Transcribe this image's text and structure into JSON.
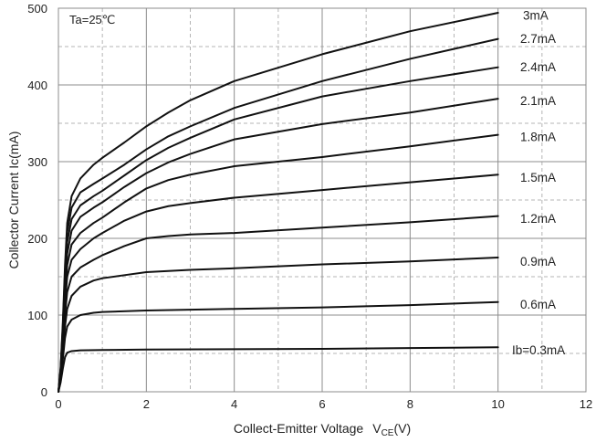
{
  "chart_data": {
    "type": "line",
    "xlabel": "Collect-Emitter Voltage",
    "xlabel_symbol": "V",
    "xlabel_subscript": "CE",
    "xlabel_unit": "(V)",
    "ylabel": "Collector  Current  Ic(mA)",
    "annotation": "Ta=25℃",
    "xlim": [
      0,
      12
    ],
    "ylim": [
      0,
      500
    ],
    "x_ticks": [
      0,
      2,
      4,
      6,
      8,
      10,
      12
    ],
    "y_ticks": [
      0,
      100,
      200,
      300,
      400,
      500
    ],
    "grid": true,
    "minor_grid": "dashed",
    "line_color": "#111111",
    "series": [
      {
        "name": "Ib=0.3mA",
        "x": [
          0,
          0.05,
          0.1,
          0.15,
          0.2,
          0.3,
          0.5,
          1,
          2,
          4,
          6,
          8,
          10
        ],
        "y": [
          0,
          12,
          30,
          45,
          51,
          53,
          54,
          54.5,
          55,
          55.5,
          56,
          57,
          58
        ]
      },
      {
        "name": "0.6mA",
        "x": [
          0,
          0.05,
          0.1,
          0.15,
          0.2,
          0.3,
          0.5,
          0.8,
          1,
          2,
          4,
          6,
          8,
          10
        ],
        "y": [
          0,
          15,
          42,
          70,
          85,
          94,
          100,
          103,
          104,
          106,
          108,
          110,
          113,
          117
        ]
      },
      {
        "name": "0.9mA",
        "x": [
          0,
          0.05,
          0.1,
          0.15,
          0.2,
          0.3,
          0.5,
          0.8,
          1,
          1.5,
          2,
          3,
          4,
          6,
          8,
          10
        ],
        "y": [
          0,
          18,
          50,
          85,
          108,
          125,
          137,
          145,
          148,
          152,
          156,
          159,
          161,
          166,
          170,
          175
        ]
      },
      {
        "name": "1.2mA",
        "x": [
          0,
          0.05,
          0.1,
          0.15,
          0.2,
          0.3,
          0.5,
          0.8,
          1,
          1.5,
          2,
          2.5,
          3,
          4,
          6,
          8,
          10
        ],
        "y": [
          0,
          20,
          58,
          100,
          130,
          150,
          162,
          172,
          178,
          190,
          200,
          203,
          205,
          207,
          214,
          221,
          229
        ]
      },
      {
        "name": "1.5mA",
        "x": [
          0,
          0.05,
          0.1,
          0.15,
          0.2,
          0.3,
          0.5,
          0.8,
          1,
          1.5,
          2,
          2.5,
          3,
          4,
          6,
          8,
          10
        ],
        "y": [
          0,
          22,
          65,
          115,
          150,
          172,
          186,
          200,
          207,
          223,
          235,
          242,
          246,
          253,
          263,
          273,
          283
        ]
      },
      {
        "name": "1.8mA",
        "x": [
          0,
          0.05,
          0.1,
          0.15,
          0.2,
          0.3,
          0.5,
          0.8,
          1,
          1.5,
          2,
          2.5,
          3,
          4,
          6,
          8,
          10
        ],
        "y": [
          0,
          24,
          70,
          125,
          165,
          192,
          207,
          220,
          227,
          247,
          265,
          276,
          283,
          294,
          306,
          320,
          335
        ]
      },
      {
        "name": "2.1mA",
        "x": [
          0,
          0.05,
          0.1,
          0.15,
          0.2,
          0.3,
          0.5,
          0.8,
          1,
          1.5,
          2,
          2.5,
          3,
          4,
          6,
          8,
          10
        ],
        "y": [
          0,
          26,
          75,
          135,
          180,
          210,
          228,
          240,
          247,
          267,
          285,
          299,
          310,
          329,
          349,
          364,
          382
        ]
      },
      {
        "name": "2.4mA",
        "x": [
          0,
          0.05,
          0.1,
          0.15,
          0.2,
          0.3,
          0.5,
          0.8,
          1,
          1.5,
          2,
          2.5,
          3,
          4,
          6,
          8,
          10
        ],
        "y": [
          0,
          28,
          80,
          145,
          195,
          225,
          243,
          255,
          262,
          282,
          302,
          318,
          331,
          355,
          385,
          405,
          423
        ]
      },
      {
        "name": "2.7mA",
        "x": [
          0,
          0.05,
          0.1,
          0.15,
          0.2,
          0.3,
          0.5,
          0.8,
          1,
          1.5,
          2,
          2.5,
          3,
          4,
          6,
          8,
          10
        ],
        "y": [
          0,
          30,
          85,
          155,
          208,
          240,
          260,
          271,
          278,
          296,
          316,
          333,
          346,
          370,
          405,
          434,
          460
        ]
      },
      {
        "name": "3mA",
        "x": [
          0,
          0.05,
          0.1,
          0.15,
          0.2,
          0.3,
          0.5,
          0.8,
          1,
          1.5,
          2,
          2.5,
          3,
          4,
          6,
          8,
          10
        ],
        "y": [
          0,
          32,
          90,
          165,
          220,
          255,
          278,
          296,
          305,
          325,
          346,
          364,
          380,
          405,
          440,
          470,
          494
        ]
      }
    ],
    "label_positions": [
      {
        "name": "Ib=0.3mA",
        "y": 55
      },
      {
        "name": "0.6mA",
        "y": 114
      },
      {
        "name": "0.9mA",
        "y": 170
      },
      {
        "name": "1.2mA",
        "y": 226
      },
      {
        "name": "1.5mA",
        "y": 280
      },
      {
        "name": "1.8mA",
        "y": 333
      },
      {
        "name": "2.1mA",
        "y": 380
      },
      {
        "name": "2.4mA",
        "y": 424
      },
      {
        "name": "2.7mA",
        "y": 461
      },
      {
        "name": "3mA",
        "y": 491
      }
    ]
  }
}
